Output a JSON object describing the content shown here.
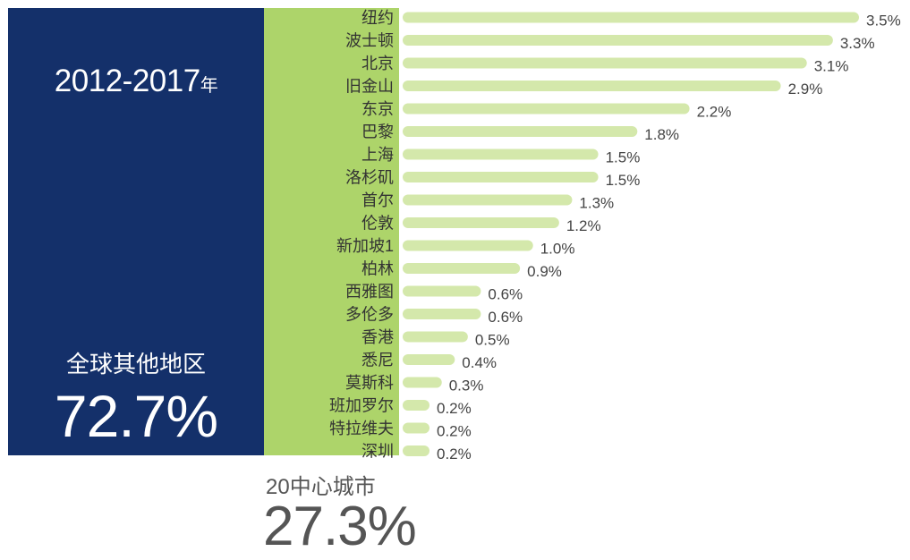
{
  "left_panel": {
    "period_main": "2012-2017",
    "period_suffix": "年",
    "rest_label": "全球其他地区",
    "rest_value": "72.7%"
  },
  "bottom_block": {
    "label": "20中心城市",
    "value": "27.3%"
  },
  "colors": {
    "navy": "#14306a",
    "green_panel": "#add46a",
    "bar": "#d4e8ab"
  },
  "chart_data": {
    "type": "bar",
    "orientation": "horizontal",
    "categories": [
      "纽约",
      "波士顿",
      "北京",
      "旧金山",
      "东京",
      "巴黎",
      "上海",
      "洛杉矶",
      "首尔",
      "伦敦",
      "新加坡1",
      "柏林",
      "西雅图",
      "多伦多",
      "香港",
      "悉尼",
      "莫斯科",
      "班加罗尔",
      "特拉维夫",
      "深圳"
    ],
    "values": [
      3.5,
      3.3,
      3.1,
      2.9,
      2.2,
      1.8,
      1.5,
      1.5,
      1.3,
      1.2,
      1.0,
      0.9,
      0.6,
      0.6,
      0.5,
      0.4,
      0.3,
      0.2,
      0.2,
      0.2
    ],
    "value_labels": [
      "3.5%",
      "3.3%",
      "3.1%",
      "2.9%",
      "2.2%",
      "1.8%",
      "1.5%",
      "1.5%",
      "1.3%",
      "1.2%",
      "1.0%",
      "0.9%",
      "0.6%",
      "0.6%",
      "0.5%",
      "0.4%",
      "0.3%",
      "0.2%",
      "0.2%",
      "0.2%"
    ],
    "xlim": [
      0,
      3.5
    ],
    "grid": false
  }
}
